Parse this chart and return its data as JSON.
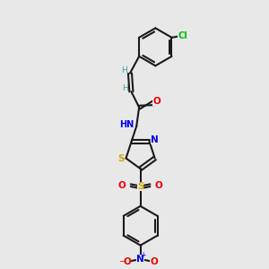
{
  "background_color": "#e8e8e8",
  "bond_color": "#1a1a1a",
  "atom_colors": {
    "C": "#1a1a1a",
    "H": "#4a9a9a",
    "N": "#0000ee",
    "O": "#ee0000",
    "S": "#ccaa00",
    "Cl": "#00bb00"
  }
}
